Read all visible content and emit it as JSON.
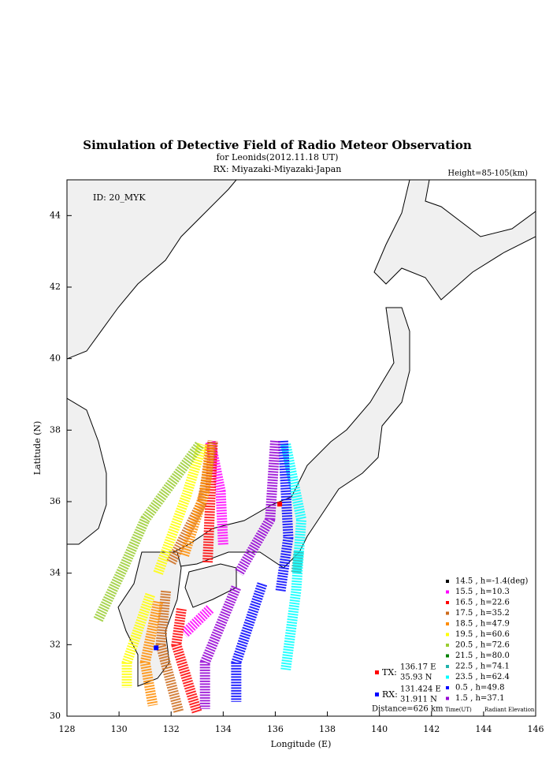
{
  "chart_data": {
    "type": "map",
    "title": "Simulation of Detective Field of Radio Meteor Observation",
    "subtitle": "for Leonids(2012.11.18 UT)",
    "receiver_label": "RX: Miyazaki-Miyazaki-Japan",
    "height_label": "Height=85-105(km)",
    "id_label": "ID: 20_MYK",
    "x_label": "Longitude (E)",
    "y_label": "Latitude (N)",
    "xlim": [
      128,
      146
    ],
    "ylim": [
      30,
      45
    ],
    "xticks": [
      128,
      130,
      132,
      134,
      136,
      138,
      140,
      142,
      144,
      146
    ],
    "yticks": [
      30,
      32,
      34,
      36,
      38,
      40,
      42,
      44
    ],
    "legend_title_time": "Time(UT)",
    "legend_title_elevation": "Radiant Elevation",
    "stations": [
      {
        "name": "TX:",
        "color": "#ff0000",
        "x": 136.17,
        "y": 35.93,
        "x_label": "136.17 E",
        "y_label": "35.93 N"
      },
      {
        "name": "RX:",
        "color": "#0000ff",
        "x": 131.424,
        "y": 31.911,
        "x_label": "131.424 E",
        "y_label": "31.911 N"
      }
    ],
    "distance_label": "Distance=626 km",
    "series": [
      {
        "name": "14.5 ,  h=-1.4(deg)",
        "color": "#000000",
        "x": [],
        "values": []
      },
      {
        "name": "15.5 ,  h=10.3",
        "color": "#ff00ff",
        "x": [
          134.0,
          133.9,
          133.5,
          null,
          133.5,
          132.5
        ],
        "values": [
          34.8,
          36.3,
          37.7,
          null,
          33.0,
          32.3
        ]
      },
      {
        "name": "16.5 ,  h=22.6",
        "color": "#ff0000",
        "x": [
          133.4,
          133.5,
          133.6,
          null,
          132.4,
          132.2,
          133.0
        ],
        "values": [
          34.3,
          36.0,
          37.7,
          null,
          33.0,
          32.0,
          30.1
        ]
      },
      {
        "name": "17.5 ,  h=35.2",
        "color": "#cd6a1a",
        "x": [
          132.0,
          133.2,
          133.6,
          null,
          131.8,
          131.6,
          132.3
        ],
        "values": [
          34.3,
          36.0,
          37.7,
          null,
          33.5,
          32.0,
          30.1
        ]
      },
      {
        "name": "18.5 ,  h=47.9",
        "color": "#ff8c00",
        "x": [
          132.5,
          133.3,
          133.5,
          null,
          131.5,
          131.0,
          131.3
        ],
        "values": [
          34.5,
          36.3,
          37.6,
          null,
          33.2,
          31.5,
          30.3
        ]
      },
      {
        "name": "19.5 ,  h=60.6",
        "color": "#ffff00",
        "x": [
          131.5,
          132.6,
          133.2,
          null,
          131.2,
          130.3,
          130.3
        ],
        "values": [
          34.0,
          36.2,
          37.6,
          null,
          33.4,
          31.5,
          30.8
        ]
      },
      {
        "name": "20.5 ,  h=72.6",
        "color": "#9acd32",
        "x": [
          129.2,
          130.2,
          131.0,
          133.1
        ],
        "values": [
          32.7,
          34.2,
          35.5,
          37.6
        ]
      },
      {
        "name": "21.5 ,  h=80.0",
        "color": "#008000",
        "x": [],
        "values": []
      },
      {
        "name": "22.5 ,  h=74.1",
        "color": "#20b2aa",
        "x": [
          136.9,
          136.8
        ],
        "values": [
          34.6,
          34.0
        ]
      },
      {
        "name": "23.5 ,  h=62.4",
        "color": "#00ffff",
        "x": [
          136.4,
          137.0,
          136.8,
          136.4
        ],
        "values": [
          37.6,
          35.5,
          33.5,
          31.3
        ]
      },
      {
        "name": "0.5 ,  h=49.8",
        "color": "#0000ff",
        "x": [
          136.3,
          136.5,
          136.2,
          null,
          135.5,
          134.5,
          134.5
        ],
        "values": [
          37.7,
          35.0,
          33.5,
          null,
          33.7,
          31.5,
          30.4
        ]
      },
      {
        "name": "1.5 ,  h=37.1",
        "color": "#9400d3",
        "x": [
          136.0,
          135.8,
          134.6,
          null,
          134.5,
          133.3,
          133.3
        ],
        "values": [
          37.7,
          35.5,
          34.0,
          null,
          33.6,
          31.5,
          30.2
        ]
      }
    ]
  }
}
